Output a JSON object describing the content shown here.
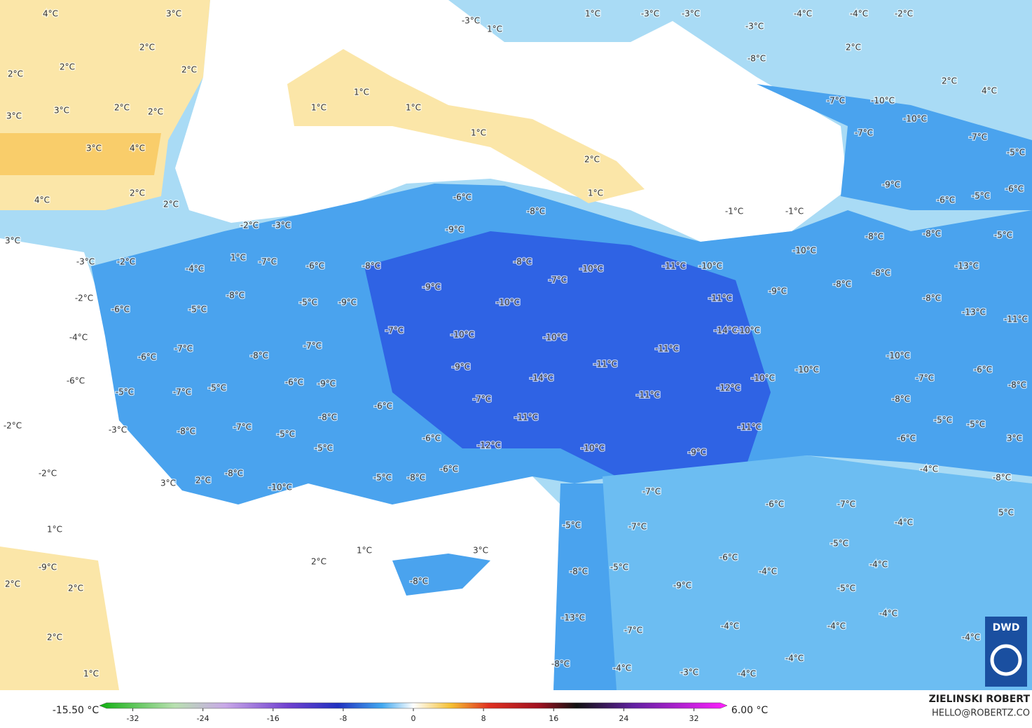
{
  "map": {
    "labels": [
      "4°C",
      "3°C",
      "2°C",
      "2°C",
      "2°C",
      "2°C",
      "3°C",
      "3°C",
      "2°C",
      "2°C",
      "3°C",
      "4°C",
      "2°C",
      "2°C",
      "4°C",
      "3°C",
      "1°C",
      "1°C",
      "1°C",
      "1°C",
      "2°C",
      "1°C",
      "-1°C",
      "-1°C",
      "-3°C",
      "1°C",
      "1°C",
      "-3°C",
      "-3°C",
      "-4°C",
      "-4°C",
      "-2°C",
      "-3°C",
      "2°C",
      "-8°C",
      "2°C",
      "4°C",
      "-7°C",
      "-10°C",
      "-10°C",
      "-7°C",
      "-7°C",
      "-5°C",
      "-9°C",
      "-6°C",
      "-6°C",
      "-5°C",
      "-2°C",
      "-3°C",
      "-6°C",
      "-8°C",
      "-9°C",
      "-8°C",
      "-8°C",
      "-5°C",
      "-10°C",
      "-2°C",
      "-3°C",
      "1°C",
      "-7°C",
      "-4°C",
      "-6°C",
      "-8°C",
      "-8°C",
      "-10°C",
      "-11°C",
      "-10°C",
      "-13°C",
      "-7°C",
      "-8°C",
      "-8°C",
      "-9°C",
      "-9°C",
      "-8°C",
      "-5°C",
      "-9°C",
      "-10°C",
      "-11°C",
      "-8°C",
      "-2°C",
      "-6°C",
      "-5°C",
      "-13°C",
      "-11°C",
      "-14°C",
      "-10°C",
      "-7°C",
      "-10°C",
      "-10°C",
      "-4°C",
      "-7°C",
      "-11°C",
      "-7°C",
      "-6°C",
      "-8°C",
      "-10°C",
      "-9°C",
      "-11°C",
      "-10°C",
      "-6°C",
      "-6°C",
      "-9°C",
      "-14°C",
      "-10°C",
      "-7°C",
      "-6°C",
      "-8°C",
      "-5°C",
      "-7°C",
      "-5°C",
      "-12°C",
      "-11°C",
      "-7°C",
      "-6°C",
      "-8°C",
      "-8°C",
      "-11°C",
      "-2°C",
      "-3°C",
      "-8°C",
      "-7°C",
      "-5°C",
      "-5°C",
      "-11°C",
      "-5°C",
      "-6°C",
      "3°C",
      "-5°C",
      "-12°C",
      "-6°C",
      "-10°C",
      "-9°C",
      "-6°C",
      "-4°C",
      "-8°C",
      "-2°C",
      "-5°C",
      "-8°C",
      "3°C",
      "2°C",
      "-10°C",
      "-8°C",
      "-7°C",
      "-6°C",
      "-7°C",
      "5°C",
      "-5°C",
      "-7°C",
      "-4°C",
      "1°C",
      "-5°C",
      "3°C",
      "2°C",
      "1°C",
      "-9°C",
      "-6°C",
      "-4°C",
      "-8°C",
      "-5°C",
      "-4°C",
      "2°C",
      "2°C",
      "-8°C",
      "-9°C",
      "-5°C",
      "-13°C",
      "-7°C",
      "-4°C",
      "-4°C",
      "-4°C",
      "2°C",
      "-4°C",
      "-4°C",
      "-8°C",
      "-4°C",
      "-3°C",
      "-4°C",
      "1°C"
    ],
    "colorbar": {
      "min_label": "-15.50 °C",
      "max_label": "6.00 °C",
      "lim": [
        -35,
        35
      ],
      "ticks": [
        -32,
        -24,
        -16,
        -8,
        0,
        8,
        16,
        24,
        32
      ]
    },
    "author": "ZIELINSKI ROBERT",
    "contact": "HELLO@ROBERTZ.CO",
    "logo": "DWD"
  }
}
